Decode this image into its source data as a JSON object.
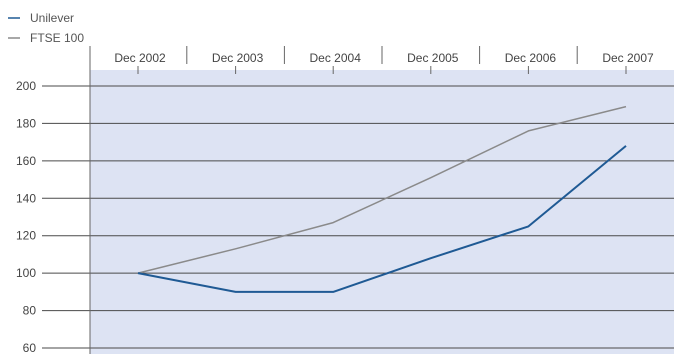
{
  "chart_data": {
    "type": "line",
    "title": "",
    "xlabel": "",
    "ylabel": "",
    "categories": [
      "Dec 2002",
      "Dec 2003",
      "Dec 2004",
      "Dec 2005",
      "Dec 2006",
      "Dec 2007"
    ],
    "y_ticks": [
      60,
      80,
      100,
      120,
      140,
      160,
      180,
      200
    ],
    "ylim": [
      60,
      200
    ],
    "grid": true,
    "legend_position": "top-left",
    "series": [
      {
        "name": "Unilever",
        "color": "#1f5a94",
        "values": [
          100,
          90,
          90,
          108,
          125,
          168
        ]
      },
      {
        "name": "FTSE 100",
        "color": "#8a8a8a",
        "values": [
          100,
          113,
          127,
          151,
          176,
          189
        ]
      }
    ],
    "colors": {
      "plot_background": "#dde3f3",
      "grid": "#4a4a4a",
      "axis": "#666666"
    }
  }
}
